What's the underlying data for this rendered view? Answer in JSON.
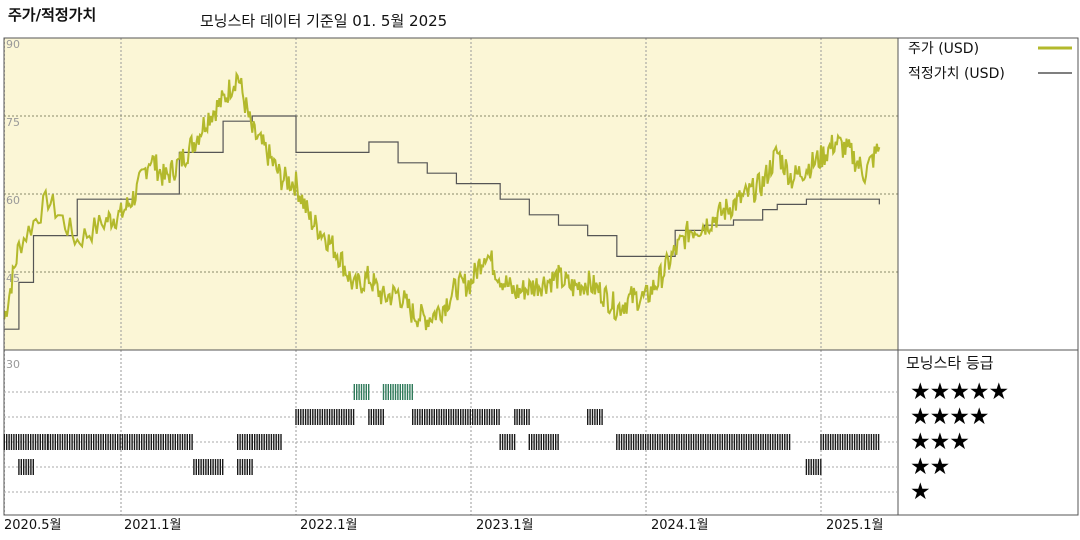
{
  "header": {
    "title": "주가/적정가치",
    "subtitle": "모닝스타 데이터 기준일 01. 5월 2025"
  },
  "legend": {
    "price_label": "주가 (USD)",
    "fair_value_label": "적정가치 (USD)",
    "rating_title": "모닝스타 등급",
    "price_color": "#b3b92c",
    "fair_value_color": "#555555"
  },
  "chart_data": [
    {
      "type": "line",
      "xlim": [
        "2020-05",
        "2025-05"
      ],
      "ylim": [
        30,
        90
      ],
      "yticks": [
        "30",
        "45",
        "60",
        "75",
        "90"
      ],
      "xticks": [
        "2020.5월",
        "2021.1월",
        "2022.1월",
        "2023.1월",
        "2024.1월",
        "2025.1월"
      ],
      "grid": true,
      "legend_position": "right",
      "series": [
        {
          "name": "주가 (USD)",
          "color": "#b3b92c",
          "x": [
            "2020-05",
            "2020-06",
            "2020-08",
            "2020-10",
            "2020-12",
            "2021-01",
            "2021-02",
            "2021-03",
            "2021-04",
            "2021-05",
            "2021-06",
            "2021-07",
            "2021-08",
            "2021-09",
            "2021-10",
            "2021-11",
            "2021-12",
            "2022-01",
            "2022-02",
            "2022-03",
            "2022-04",
            "2022-05",
            "2022-06",
            "2022-07",
            "2022-08",
            "2022-09",
            "2022-10",
            "2022-11",
            "2022-12",
            "2023-01",
            "2023-02",
            "2023-03",
            "2023-04",
            "2023-05",
            "2023-06",
            "2023-07",
            "2023-08",
            "2023-09",
            "2023-10",
            "2023-11",
            "2023-12",
            "2024-01",
            "2024-02",
            "2024-03",
            "2024-04",
            "2024-05",
            "2024-06",
            "2024-07",
            "2024-08",
            "2024-09",
            "2024-10",
            "2024-11",
            "2024-12",
            "2025-01",
            "2025-02",
            "2025-03",
            "2025-04",
            "2025-05"
          ],
          "values": [
            36,
            50,
            59,
            51,
            55,
            56,
            60,
            67,
            63,
            66,
            70,
            75,
            78,
            83,
            72,
            68,
            63,
            62,
            55,
            52,
            48,
            42,
            44,
            40,
            41,
            37,
            36,
            38,
            42,
            43,
            49,
            44,
            41,
            42,
            43,
            44,
            42,
            43,
            41,
            38,
            40,
            40,
            44,
            49,
            53,
            54,
            56,
            58,
            60,
            62,
            68,
            63,
            65,
            67,
            70,
            68,
            64,
            69
          ]
        },
        {
          "name": "적정가치 (USD)",
          "color": "#555555",
          "x": [
            "2020-05",
            "2020-06",
            "2020-07",
            "2020-10",
            "2021-02",
            "2021-05",
            "2021-08",
            "2021-10",
            "2022-01",
            "2022-06",
            "2022-08",
            "2022-10",
            "2022-12",
            "2023-03",
            "2023-05",
            "2023-07",
            "2023-09",
            "2023-11",
            "2023-12",
            "2024-01",
            "2024-03",
            "2024-05",
            "2024-07",
            "2024-09",
            "2024-10",
            "2024-12",
            "2025-02",
            "2025-05"
          ],
          "values": [
            34,
            43,
            52,
            59,
            60,
            68,
            74,
            75,
            68,
            70,
            66,
            64,
            62,
            59,
            56,
            54,
            52,
            48,
            48,
            48,
            53,
            54,
            55,
            57,
            58,
            59,
            59,
            58
          ]
        }
      ]
    },
    {
      "type": "heatmap",
      "title": "모닝스타 등급",
      "xlim": [
        "2020-05",
        "2025-05"
      ],
      "rows": [
        "★★★★★",
        "★★★★",
        "★★★",
        "★★",
        "★"
      ],
      "segments": [
        {
          "rating": 3,
          "start": "2020-05",
          "end": "2020-08"
        },
        {
          "rating": 2,
          "start": "2020-06",
          "end": "2020-07"
        },
        {
          "rating": 3,
          "start": "2020-08",
          "end": "2021-06"
        },
        {
          "rating": 2,
          "start": "2021-06",
          "end": "2021-08"
        },
        {
          "rating": 3,
          "start": "2021-09",
          "end": "2021-10"
        },
        {
          "rating": 2,
          "start": "2021-09",
          "end": "2021-10"
        },
        {
          "rating": 3,
          "start": "2021-10",
          "end": "2021-12"
        },
        {
          "rating": 4,
          "start": "2022-01",
          "end": "2022-05"
        },
        {
          "rating": 5,
          "start": "2022-05",
          "end": "2022-06"
        },
        {
          "rating": 4,
          "start": "2022-06",
          "end": "2022-07"
        },
        {
          "rating": 5,
          "start": "2022-07",
          "end": "2022-09"
        },
        {
          "rating": 4,
          "start": "2022-09",
          "end": "2023-03"
        },
        {
          "rating": 3,
          "start": "2023-03",
          "end": "2023-04"
        },
        {
          "rating": 4,
          "start": "2023-04",
          "end": "2023-05"
        },
        {
          "rating": 3,
          "start": "2023-05",
          "end": "2023-07"
        },
        {
          "rating": 4,
          "start": "2023-09",
          "end": "2023-10"
        },
        {
          "rating": 3,
          "start": "2023-11",
          "end": "2024-11"
        },
        {
          "rating": 2,
          "start": "2024-12",
          "end": "2025-01"
        },
        {
          "rating": 3,
          "start": "2025-01",
          "end": "2025-05"
        }
      ]
    }
  ]
}
